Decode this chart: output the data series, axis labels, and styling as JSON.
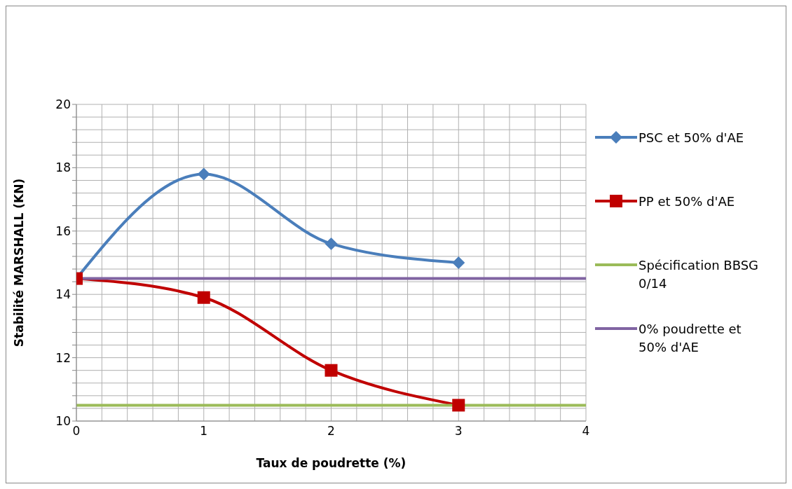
{
  "chart_data": {
    "type": "line",
    "xlabel": "Taux de poudrette (%)",
    "ylabel": "Stabilité MARSHALL (KN)",
    "xlim": [
      0,
      4
    ],
    "ylim": [
      10,
      20
    ],
    "xticks": [
      0,
      {
        "value": 0.2,
        "label": null
      },
      {
        "value": 0.4,
        "label": null
      },
      {
        "value": 0.6,
        "label": null
      },
      {
        "value": 0.8,
        "label": null
      },
      1,
      {
        "value": 1.2,
        "label": null
      },
      {
        "value": 1.4,
        "label": null
      },
      {
        "value": 1.6,
        "label": null
      },
      {
        "value": 1.8,
        "label": null
      },
      2,
      {
        "value": 2.2,
        "label": null
      },
      {
        "value": 2.4,
        "label": null
      },
      {
        "value": 2.6,
        "label": null
      },
      {
        "value": 2.8,
        "label": null
      },
      3,
      {
        "value": 3.2,
        "label": null
      },
      {
        "value": 3.4,
        "label": null
      },
      {
        "value": 3.6,
        "label": null
      },
      {
        "value": 3.8,
        "label": null
      },
      4
    ],
    "yticks": [
      10,
      {
        "value": 10.4,
        "label": null
      },
      {
        "value": 10.8,
        "label": null
      },
      {
        "value": 11.2,
        "label": null
      },
      {
        "value": 11.6,
        "label": null
      },
      12,
      {
        "value": 12.4,
        "label": null
      },
      {
        "value": 12.8,
        "label": null
      },
      {
        "value": 13.2,
        "label": null
      },
      {
        "value": 13.6,
        "label": null
      },
      14,
      {
        "value": 14.4,
        "label": null
      },
      {
        "value": 14.8,
        "label": null
      },
      {
        "value": 15.2,
        "label": null
      },
      {
        "value": 15.6,
        "label": null
      },
      16,
      {
        "value": 16.4,
        "label": null
      },
      {
        "value": 16.8,
        "label": null
      },
      {
        "value": 17.2,
        "label": null
      },
      {
        "value": 17.6,
        "label": null
      },
      18,
      {
        "value": 18.4,
        "label": null
      },
      {
        "value": 18.8,
        "label": null
      },
      {
        "value": 19.2,
        "label": null
      },
      {
        "value": 19.6,
        "label": null
      },
      20
    ],
    "grid": true,
    "legend": "right",
    "series": [
      {
        "name": "PSC et 50% d'AE",
        "color": "#4a7ebb",
        "marker": "diamond",
        "x": [
          0,
          1,
          2,
          3
        ],
        "values": [
          14.5,
          17.8,
          15.6,
          15.0
        ]
      },
      {
        "name": "PP et 50% d'AE",
        "color": "#c00000",
        "marker": "square",
        "x": [
          0,
          1,
          2,
          3
        ],
        "values": [
          14.5,
          13.9,
          11.6,
          10.5
        ]
      },
      {
        "name": "Spécification BBSG 0/14",
        "color": "#9bbb59",
        "marker": "none",
        "x": [
          0,
          4
        ],
        "values": [
          10.5,
          10.5
        ]
      },
      {
        "name": "0% poudrette et 50% d'AE",
        "color": "#8064a2",
        "marker": "none",
        "x": [
          0,
          4
        ],
        "values": [
          14.5,
          14.5
        ]
      }
    ]
  }
}
